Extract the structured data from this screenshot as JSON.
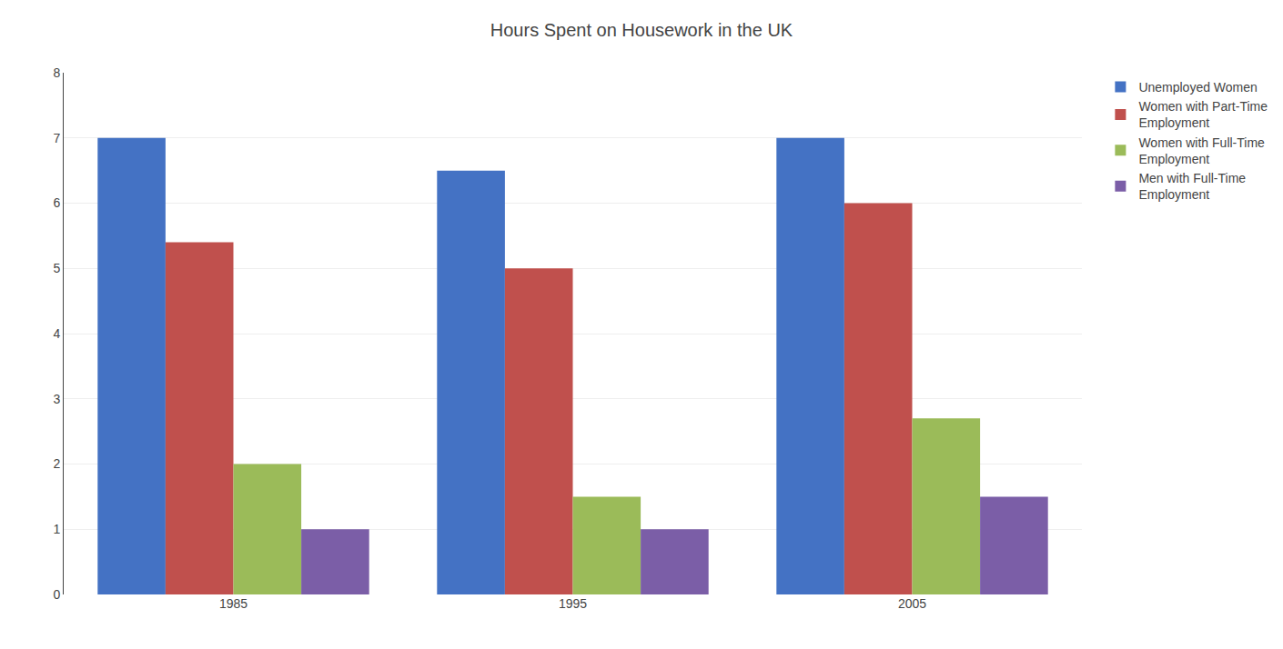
{
  "chart_data": {
    "type": "bar",
    "title": "Hours Spent on Housework in the UK",
    "categories": [
      "1985",
      "1995",
      "2005"
    ],
    "series": [
      {
        "name": "Unemployed Women",
        "color": "#4472C4",
        "values": [
          7.0,
          6.5,
          7.0
        ]
      },
      {
        "name": "Women with Part-Time\nEmployment",
        "color": "#C0504D",
        "values": [
          5.4,
          5.0,
          6.0
        ]
      },
      {
        "name": "Women with Full-Time\nEmployment",
        "color": "#9BBB59",
        "values": [
          2.0,
          1.5,
          2.7
        ]
      },
      {
        "name": "Men with Full-Time\nEmployment",
        "color": "#7B5EA7",
        "values": [
          1.0,
          1.0,
          1.5
        ]
      }
    ],
    "ylim": [
      0,
      8
    ],
    "yticks": [
      0,
      1,
      2,
      3,
      4,
      5,
      6,
      7,
      8
    ],
    "grid": true,
    "legend": "upper right"
  }
}
